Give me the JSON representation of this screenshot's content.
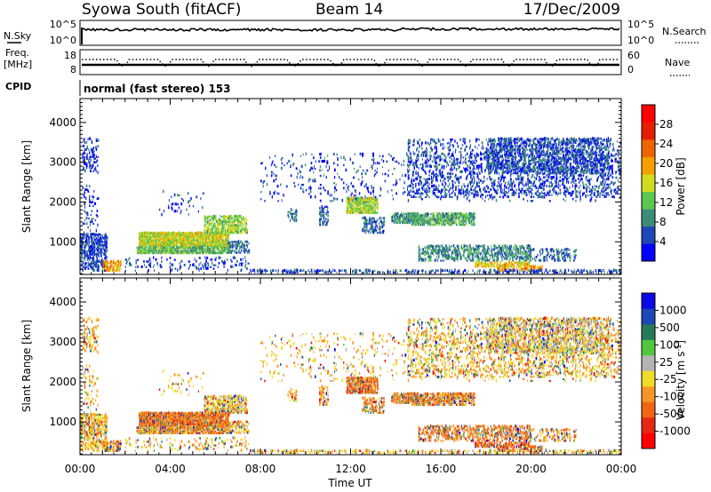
{
  "header": {
    "station": "Syowa South (fitACF)",
    "beam": "Beam 14",
    "date": "17/Dec/2009"
  },
  "status_panels": {
    "nsky": {
      "label": "N.Sky",
      "ticks": [
        "10^5",
        "10^0"
      ],
      "right_label": "N.Search",
      "right_ticks": [
        "10^5",
        "10^0"
      ]
    },
    "freq": {
      "label_line1": "Freq.",
      "label_line2": "[MHz]",
      "ticks": [
        "18",
        "8"
      ],
      "right_label": "Nave",
      "right_ticks": [
        "60",
        "0"
      ]
    },
    "cpid": {
      "label": "CPID",
      "value": "normal (fast stereo) 153"
    }
  },
  "colors": {
    "power_scale": [
      "#0000ff",
      "#1e46b4",
      "#3c8c78",
      "#5ac850",
      "#d2dc1e",
      "#f5a000",
      "#f06400",
      "#e61e00",
      "#ff0000"
    ],
    "velocity_scale": [
      "#0a0ae6",
      "#1e46b4",
      "#28785a",
      "#50c83c",
      "#b4b4b4",
      "#f0dc28",
      "#f59628",
      "#f06414",
      "#e62814",
      "#ff0000"
    ]
  },
  "chart_data": [
    {
      "type": "heatmap",
      "name": "power",
      "ylabel": "Slant Range [km]",
      "xlabel": "Time UT",
      "x_ticks": [
        "00:00",
        "04:00",
        "08:00",
        "12:00",
        "16:00",
        "20:00",
        "00:00"
      ],
      "x_range_hours": [
        0,
        24
      ],
      "y_ticks": [
        1000,
        2000,
        3000,
        4000
      ],
      "y_range_km": [
        180,
        4600
      ],
      "colorbar": {
        "label": "Power [dB]",
        "ticks": [
          "28",
          "24",
          "20",
          "16",
          "12",
          "8",
          "4"
        ],
        "range": [
          0,
          32
        ]
      }
    },
    {
      "type": "heatmap",
      "name": "velocity",
      "ylabel": "Slant Range [km]",
      "xlabel": "Time UT",
      "x_ticks": [
        "00:00",
        "04:00",
        "08:00",
        "12:00",
        "16:00",
        "20:00",
        "00:00"
      ],
      "x_range_hours": [
        0,
        24
      ],
      "y_ticks": [
        1000,
        2000,
        3000,
        4000
      ],
      "y_range_km": [
        180,
        4600
      ],
      "colorbar": {
        "label": "Velocity [m s",
        "label_sup": "-1",
        "label_end": "]",
        "ticks": [
          "1000",
          "500",
          "100",
          "25",
          "-25",
          "-100",
          "-500",
          "-1000"
        ]
      }
    }
  ]
}
